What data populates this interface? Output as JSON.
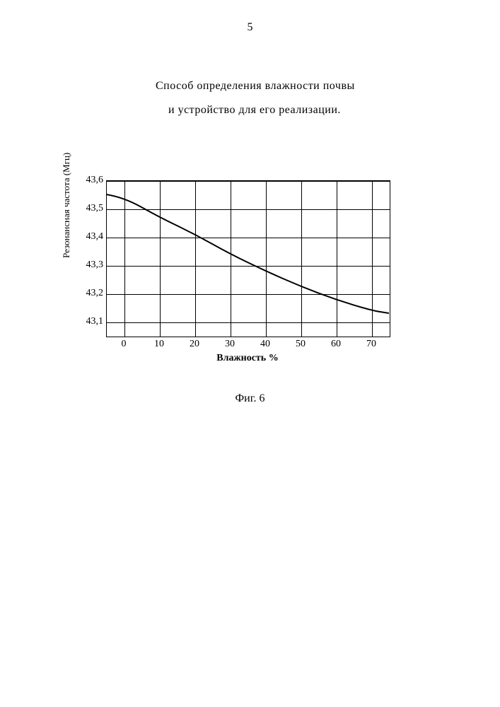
{
  "page_number": "5",
  "title_line1": "Способ определения влажности почвы",
  "title_line2": "и устройство  для его реализации.",
  "figure_caption": "Фиг. 6",
  "chart": {
    "type": "line",
    "background_color": "#ffffff",
    "grid_color": "#000000",
    "line_color": "#000000",
    "line_width": 2,
    "xlabel": "Влажность %",
    "ylabel": "Резонансная частота (Мгц)",
    "label_fontsize": 14,
    "tick_fontsize": 14,
    "xlim": [
      -5,
      75
    ],
    "ylim": [
      43.05,
      43.6
    ],
    "xticks": [
      0,
      10,
      20,
      30,
      40,
      50,
      60,
      70
    ],
    "yticks": [
      43.1,
      43.2,
      43.3,
      43.4,
      43.5,
      43.6
    ],
    "ytick_labels": [
      "43,1",
      "43,2",
      "43,3",
      "43,4",
      "43,5",
      "43,6"
    ],
    "x": [
      -5,
      0,
      10,
      20,
      30,
      40,
      50,
      60,
      70,
      75
    ],
    "y": [
      43.55,
      43.54,
      43.47,
      43.41,
      43.34,
      43.28,
      43.225,
      43.178,
      43.14,
      43.13
    ]
  }
}
